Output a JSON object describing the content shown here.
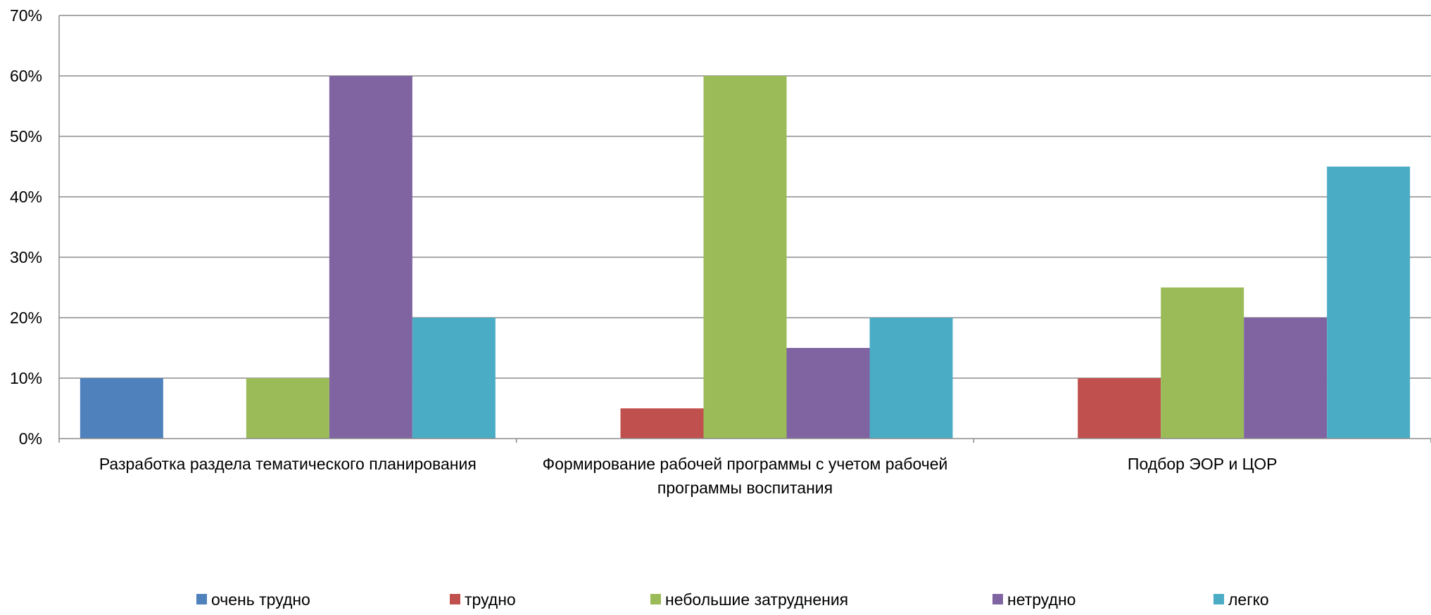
{
  "chart_data": {
    "type": "bar",
    "categories": [
      [
        "Разработка раздела тематического планирования"
      ],
      [
        "Формирование рабочей программы с учетом рабочей",
        "программы воспитания"
      ],
      [
        "Подбор ЭОР и ЦОР"
      ]
    ],
    "series": [
      {
        "name": "очень трудно",
        "color": "#4F81BD",
        "values": [
          10,
          0,
          0
        ]
      },
      {
        "name": "трудно",
        "color": "#C0504D",
        "values": [
          0,
          5,
          10
        ]
      },
      {
        "name": "небольшие затруднения",
        "color": "#9BBB59",
        "values": [
          10,
          60,
          25
        ]
      },
      {
        "name": "нетрудно",
        "color": "#8064A2",
        "values": [
          60,
          15,
          20
        ]
      },
      {
        "name": "легко",
        "color": "#4BACC6",
        "values": [
          20,
          20,
          45
        ]
      }
    ],
    "ylim": [
      0,
      70
    ],
    "yticks": [
      "0%",
      "10%",
      "20%",
      "30%",
      "40%",
      "50%",
      "60%",
      "70%"
    ],
    "grid": true,
    "legend_position": "bottom"
  }
}
